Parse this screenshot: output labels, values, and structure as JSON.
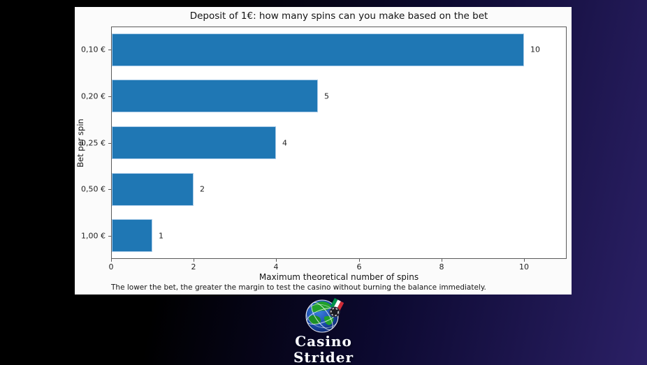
{
  "background": {
    "left_color": "#000000",
    "right_color": "#2b2066"
  },
  "chart_card": {
    "bg_color": "#fbfbfb"
  },
  "chart_data": {
    "type": "bar",
    "orientation": "horizontal",
    "title": "Deposit of 1€: how many spins can you make based on the bet",
    "categories": [
      "0,10 €",
      "0,20 €",
      "0,25 €",
      "0,50 €",
      "1,00 €"
    ],
    "values": [
      10,
      5,
      4,
      2,
      1
    ],
    "bar_labels": [
      "10",
      "5",
      "4",
      "2",
      "1"
    ],
    "xlabel": "Maximum theoretical number of spins",
    "ylabel": "Bet per spin",
    "xticks": [
      0,
      2,
      4,
      6,
      8,
      10
    ],
    "xlim": [
      0,
      11.03
    ],
    "grid": false,
    "legend": null,
    "bar_color": "#1f77b4",
    "bar_edge_color": "#a9cbe8",
    "caption": "The lower the bet, the greater the margin to test the casino without burning the balance immediately."
  },
  "footer": {
    "logo": {
      "icon": "globe-with-italian-flag-and-casino-chip-icon",
      "line1": "Casino",
      "line2": "Strider"
    }
  }
}
